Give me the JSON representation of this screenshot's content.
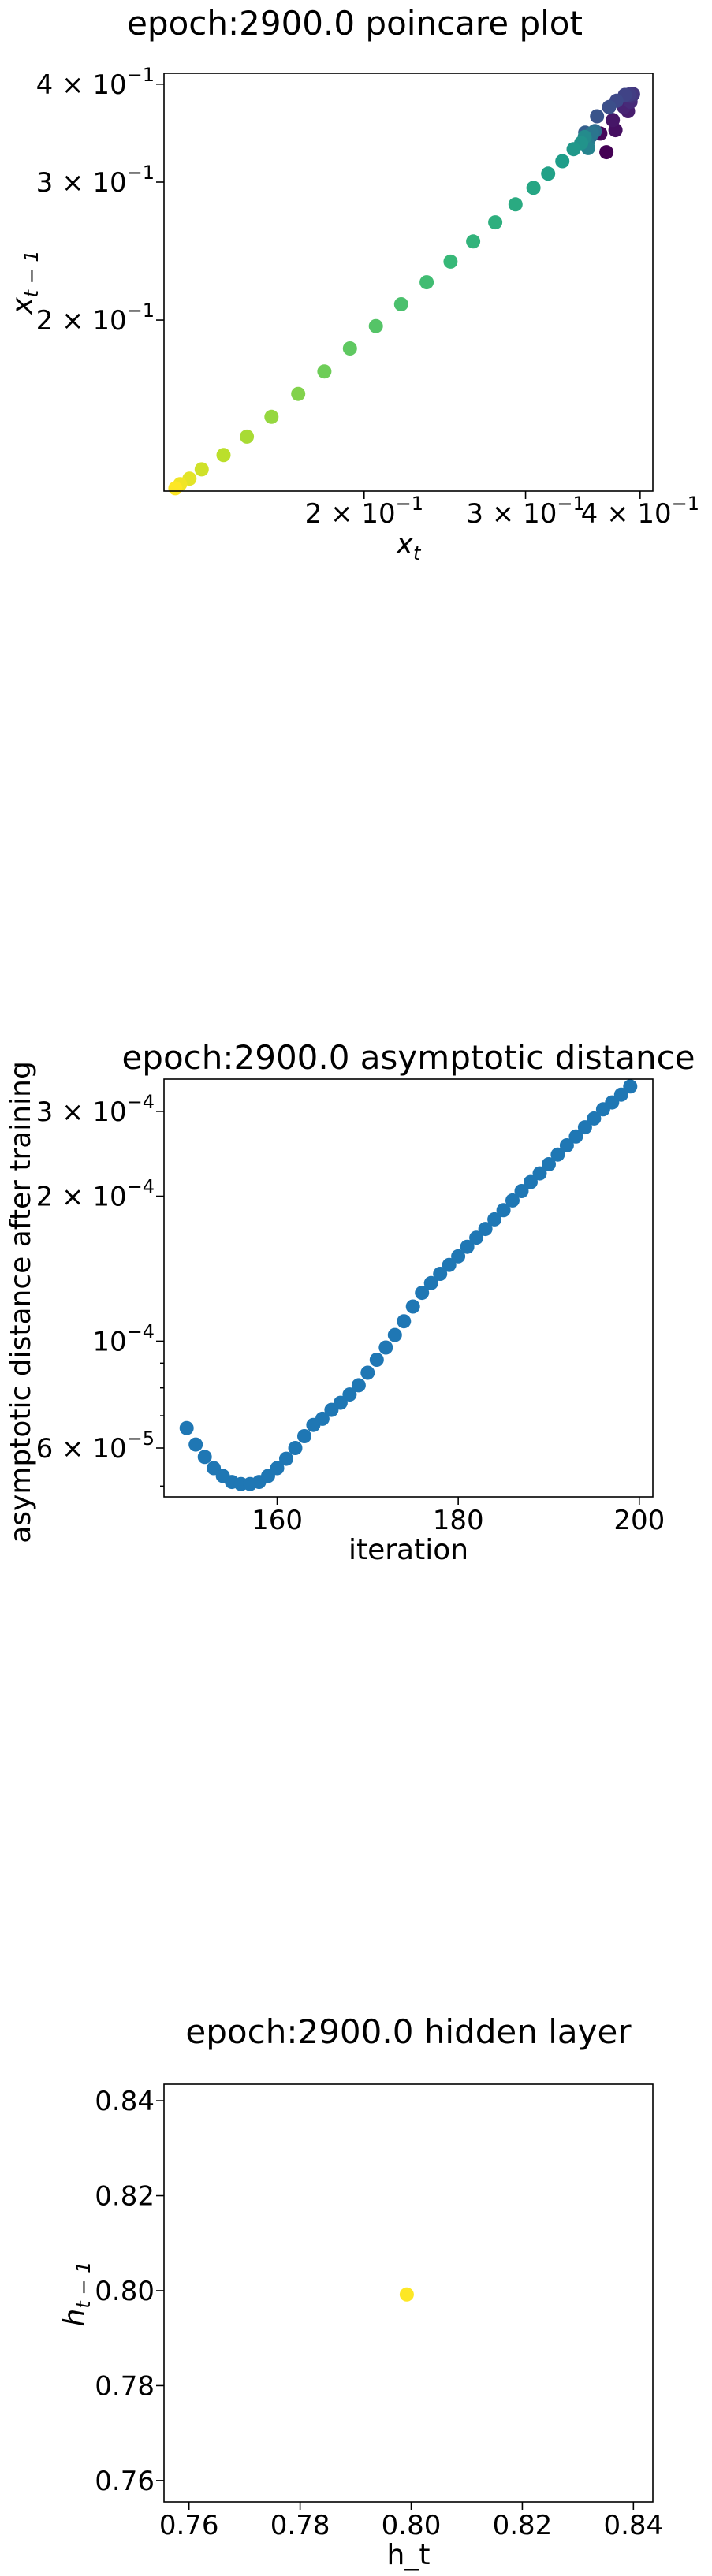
{
  "chart_data": [
    {
      "type": "scatter",
      "title": "epoch:2900.0 poincare plot",
      "xlabel": "x_t",
      "ylabel": "x_{t-1}",
      "xscale": "log",
      "yscale": "log",
      "xlim": [
        0.121,
        0.413
      ],
      "ylim": [
        0.121,
        0.413
      ],
      "colormap": "viridis",
      "x_tick_labels": [
        {
          "value": 0.2,
          "mantissa": "2",
          "exp": "-1"
        },
        {
          "value": 0.3,
          "mantissa": "3",
          "exp": "-1"
        },
        {
          "value": 0.4,
          "mantissa": "4",
          "exp": "-1"
        }
      ],
      "y_tick_labels": [
        {
          "value": 0.2,
          "mantissa": "2",
          "exp": "-1"
        },
        {
          "value": 0.3,
          "mantissa": "3",
          "exp": "-1"
        },
        {
          "value": 0.4,
          "mantissa": "4",
          "exp": "-1"
        }
      ],
      "x": [
        0.3675,
        0.362,
        0.376,
        0.3735,
        0.388,
        0.384,
        0.3905,
        0.3915,
        0.393,
        0.389,
        0.385,
        0.377,
        0.37,
        0.359,
        0.3485,
        0.3535,
        0.357,
        0.3545,
        0.3505,
        0.351,
        0.348,
        0.345,
        0.3385,
        0.329,
        0.3175,
        0.306,
        0.2925,
        0.278,
        0.263,
        0.2485,
        0.234,
        0.2195,
        0.206,
        0.193,
        0.181,
        0.1695,
        0.1585,
        0.149,
        0.1405,
        0.133,
        0.129,
        0.126,
        0.1245
      ],
      "y": [
        0.3275,
        0.346,
        0.3495,
        0.36,
        0.3695,
        0.374,
        0.38,
        0.386,
        0.3885,
        0.388,
        0.3875,
        0.381,
        0.374,
        0.364,
        0.347,
        0.3435,
        0.3485,
        0.3465,
        0.3365,
        0.3315,
        0.3425,
        0.3365,
        0.3305,
        0.319,
        0.3075,
        0.295,
        0.281,
        0.2665,
        0.252,
        0.2375,
        0.2235,
        0.2095,
        0.1965,
        0.184,
        0.172,
        0.161,
        0.1505,
        0.142,
        0.1345,
        0.129,
        0.1255,
        0.1235,
        0.122
      ],
      "color_value": [
        0,
        0.02,
        0.04,
        0.06,
        0.08,
        0.1,
        0.12,
        0.14,
        0.16,
        0.18,
        0.2,
        0.22,
        0.24,
        0.26,
        0.3,
        0.33,
        0.36,
        0.39,
        0.42,
        0.45,
        0.48,
        0.51,
        0.53,
        0.55,
        0.57,
        0.59,
        0.61,
        0.63,
        0.65,
        0.67,
        0.69,
        0.71,
        0.73,
        0.75,
        0.78,
        0.81,
        0.84,
        0.87,
        0.9,
        0.93,
        0.96,
        0.98,
        1.0
      ]
    },
    {
      "type": "scatter",
      "title": "epoch:2900.0 asymptotic distance",
      "xlabel": "iteration",
      "ylabel": "asymptotic distance after training",
      "xscale": "linear",
      "yscale": "log",
      "xlim": [
        147.5,
        201.5
      ],
      "ylim": [
        4.75e-05,
        0.00035
      ],
      "color": "#1f77b4",
      "x_ticks": [
        160,
        180,
        200
      ],
      "y_tick_labels": [
        {
          "value": 6e-05,
          "mantissa": "6",
          "exp": "-5"
        },
        {
          "value": 0.0001,
          "mantissa": "",
          "exp": "-4"
        },
        {
          "value": 0.0002,
          "mantissa": "2",
          "exp": "-4"
        },
        {
          "value": 0.0003,
          "mantissa": "3",
          "exp": "-4"
        }
      ],
      "x": [
        150,
        151,
        152,
        153,
        154,
        155,
        156,
        157,
        158,
        159,
        160,
        161,
        162,
        163,
        164,
        165,
        166,
        167,
        168,
        169,
        170,
        171,
        172,
        173,
        174,
        175,
        176,
        177,
        178,
        179,
        180,
        181,
        182,
        183,
        184,
        185,
        186,
        187,
        188,
        189,
        190,
        191,
        192,
        193,
        194,
        195,
        196,
        197,
        198,
        199
      ],
      "y": [
        6.6e-05,
        6.1e-05,
        5.75e-05,
        5.45e-05,
        5.25e-05,
        5.1e-05,
        5.05e-05,
        5.05e-05,
        5.1e-05,
        5.25e-05,
        5.45e-05,
        5.7e-05,
        6e-05,
        6.35e-05,
        6.7e-05,
        6.9e-05,
        7.2e-05,
        7.45e-05,
        7.75e-05,
        8.1e-05,
        8.6e-05,
        9.15e-05,
        9.7e-05,
        0.000103,
        0.00011,
        0.000118,
        0.000126,
        0.000132,
        0.000138,
        0.000144,
        0.00015,
        0.000157,
        0.000164,
        0.000171,
        0.000179,
        0.000187,
        0.000196,
        0.000205,
        0.000214,
        0.000223,
        0.000233,
        0.000244,
        0.000255,
        0.000266,
        0.000278,
        0.00029,
        0.000303,
        0.000313,
        0.000325,
        0.000338
      ]
    },
    {
      "type": "scatter",
      "title": "epoch:2900.0 hidden layer",
      "xlabel": "h_t",
      "ylabel": "h_{t-1}",
      "xscale": "linear",
      "yscale": "linear",
      "xlim": [
        0.7555,
        0.8435
      ],
      "ylim": [
        0.7555,
        0.8435
      ],
      "color": "#fde725",
      "x_ticks": [
        "0.76",
        "0.78",
        "0.80",
        "0.82",
        "0.84"
      ],
      "y_ticks": [
        "0.76",
        "0.78",
        "0.80",
        "0.82",
        "0.84"
      ],
      "x": [
        0.7992
      ],
      "y": [
        0.7992
      ]
    }
  ]
}
